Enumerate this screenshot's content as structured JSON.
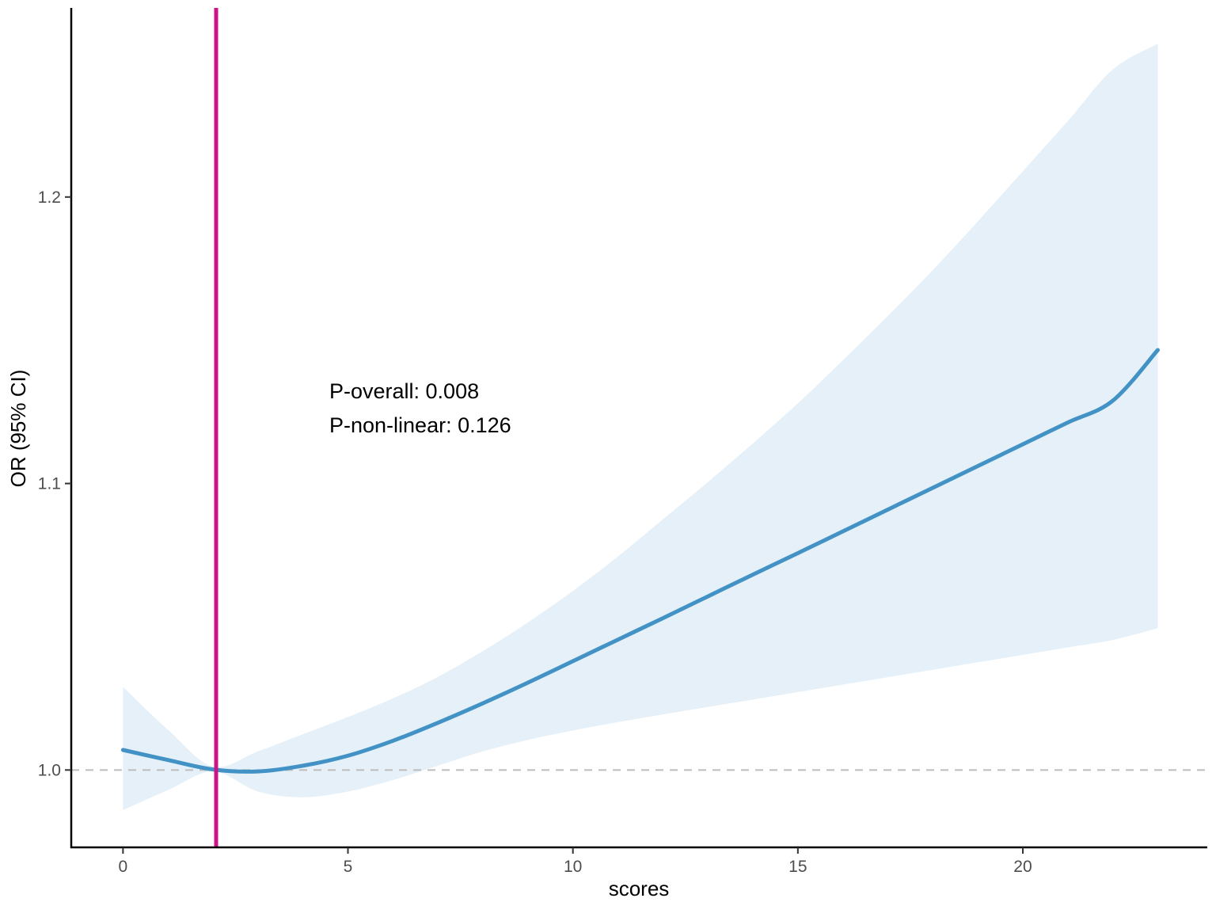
{
  "chart_data": {
    "type": "line",
    "title": "",
    "xlabel": "scores",
    "ylabel": "OR (95% CI)",
    "xlim": [
      -1.15,
      24.1
    ],
    "ylim": [
      0.973,
      1.266
    ],
    "x_ticks": [
      0,
      5,
      10,
      15,
      20
    ],
    "y_ticks": [
      1.0,
      1.1,
      1.2
    ],
    "x_tick_labels": [
      "0",
      "5",
      "10",
      "15",
      "20"
    ],
    "y_tick_labels": [
      "1.0",
      "1.1",
      "1.2"
    ],
    "grid": false,
    "legend": "none",
    "reference_line": {
      "axis": "y",
      "value": 1.0,
      "style": "dashed",
      "color": "#bdbdbd"
    },
    "cutoff_line": {
      "axis": "x",
      "value": 2.07,
      "color": "#cc1489"
    },
    "series": [
      {
        "x": [
          0,
          1,
          2,
          3,
          4,
          5,
          6,
          7,
          8,
          9,
          10,
          11,
          12,
          13,
          14,
          15,
          16,
          17,
          18,
          19,
          20,
          21,
          22,
          23
        ],
        "y": [
          1.007,
          1.0035,
          1.0002,
          0.9995,
          1.0015,
          1.005,
          1.0102,
          1.0165,
          1.0233,
          1.0305,
          1.038,
          1.0455,
          1.053,
          1.0606,
          1.0682,
          1.0757,
          1.0833,
          1.0909,
          1.0985,
          1.1061,
          1.1137,
          1.1213,
          1.1289,
          1.1466
        ],
        "ci_lower": [
          0.986,
          0.993,
          0.9995,
          0.9925,
          0.9905,
          0.9925,
          0.9965,
          1.0015,
          1.0065,
          1.0105,
          1.0138,
          1.0167,
          1.0194,
          1.022,
          1.0246,
          1.0272,
          1.0298,
          1.0324,
          1.035,
          1.0376,
          1.0402,
          1.0428,
          1.0454,
          1.0495
        ],
        "ci_upper": [
          1.029,
          1.014,
          1.0012,
          1.0065,
          1.0125,
          1.0185,
          1.025,
          1.0325,
          1.0415,
          1.0515,
          1.0625,
          1.0745,
          1.0875,
          1.1005,
          1.114,
          1.128,
          1.143,
          1.1585,
          1.1745,
          1.1915,
          1.209,
          1.2265,
          1.2445,
          1.2535
        ],
        "color": "#4292c6",
        "band_color": "#e5f0f8"
      }
    ],
    "annotations": [
      "P-overall: 0.008",
      "P-non-linear: 0.126"
    ]
  }
}
